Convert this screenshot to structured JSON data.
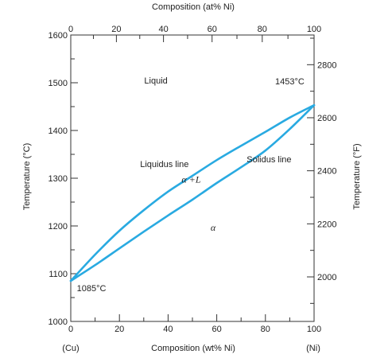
{
  "chart_data": {
    "type": "line",
    "title": "",
    "x_axis_bottom": {
      "label": "Composition (wt% Ni)",
      "range": [
        0,
        100
      ],
      "ticks": [
        "0",
        "20",
        "40",
        "60",
        "80",
        "100"
      ],
      "end_labels": {
        "left": "(Cu)",
        "right": "(Ni)"
      }
    },
    "x_axis_top": {
      "label": "Composition (at% Ni)",
      "ticks": [
        "0",
        "20",
        "40",
        "60",
        "80",
        "100"
      ]
    },
    "y_axis_left": {
      "label": "Temperature (°C)",
      "range": [
        1000,
        1600
      ],
      "ticks": [
        "1000",
        "1100",
        "1200",
        "1300",
        "1400",
        "1500",
        "1600"
      ]
    },
    "y_axis_right": {
      "label": "Temperature (°F)",
      "ticks": [
        {
          "label": "2000",
          "value_c": 1093.3
        },
        {
          "label": "2200",
          "value_c": 1204.4
        },
        {
          "label": "2400",
          "value_c": 1315.6
        },
        {
          "label": "2600",
          "value_c": 1426.7
        },
        {
          "label": "2800",
          "value_c": 1537.8
        }
      ]
    },
    "series": [
      {
        "name": "Liquidus line",
        "x": [
          0,
          10,
          20,
          30,
          40,
          50,
          60,
          70,
          80,
          90,
          100
        ],
        "y": [
          1085,
          1140,
          1190,
          1233,
          1272,
          1305,
          1338,
          1368,
          1397,
          1427,
          1453
        ]
      },
      {
        "name": "Solidus line",
        "x": [
          0,
          10,
          20,
          30,
          40,
          50,
          60,
          70,
          80,
          90,
          100
        ],
        "y": [
          1085,
          1118,
          1153,
          1188,
          1222,
          1255,
          1290,
          1323,
          1358,
          1403,
          1453
        ]
      }
    ],
    "annotations": [
      {
        "text": "Liquid",
        "x": 35,
        "y": 1498
      },
      {
        "text": "1453°C",
        "x": 90,
        "y": 1497
      },
      {
        "text": "Liquidus line",
        "x": 38.5,
        "y": 1323
      },
      {
        "text": "Solidus line",
        "x": 81.5,
        "y": 1333
      },
      {
        "text": "α +L",
        "x": 49.5,
        "y": 1291
      },
      {
        "text": "α",
        "x": 58.5,
        "y": 1190
      },
      {
        "text": "1085°C",
        "x": 8.5,
        "y": 1063
      }
    ],
    "line_color": "#29aae1",
    "grid": false
  }
}
